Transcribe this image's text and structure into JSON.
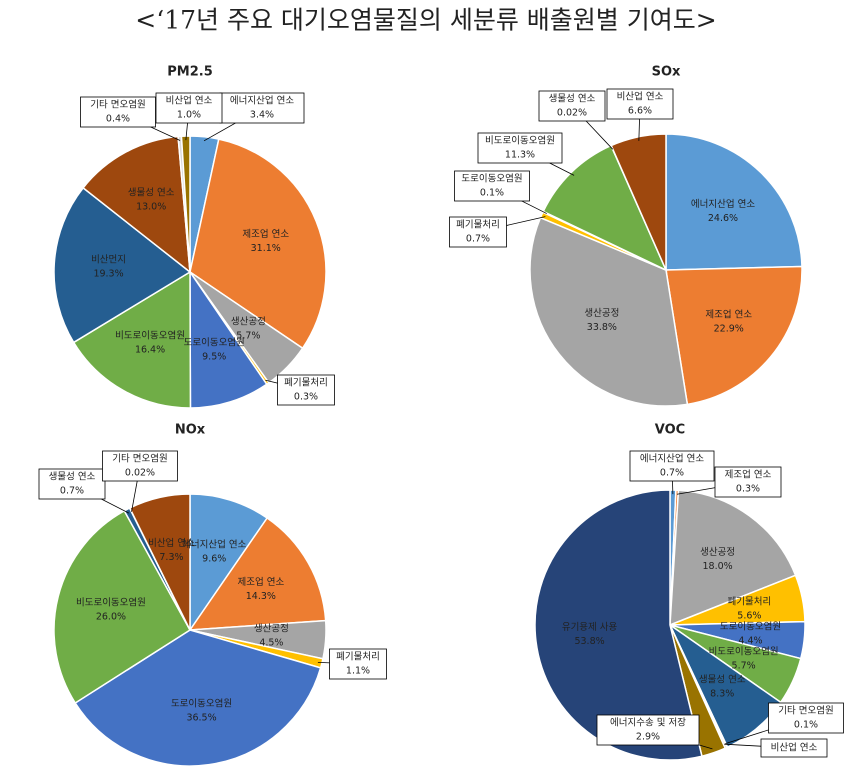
{
  "title": "<‘17년 주요 대기오염물질의 세분류 배출원별 기여도>",
  "chart_data": [
    {
      "type": "pie",
      "title": "PM2.5",
      "categories": [
        "에너지산업 연소",
        "제조업 연소",
        "생산공정",
        "폐기물처리",
        "도로이동오염원",
        "비도로이동오염원",
        "비산먼지",
        "생물성 연소",
        "기타 면오염원",
        "비산업 연소"
      ],
      "values": [
        3.4,
        31.1,
        5.7,
        0.3,
        9.5,
        16.4,
        19.3,
        13.0,
        0.4,
        1.0
      ],
      "value_labels": [
        "3.4%",
        "31.1%",
        "5.7%",
        "0.3%",
        "9.5%",
        "16.4%",
        "19.3%",
        "13.0%",
        "0.4%",
        "1.0%"
      ],
      "colors": [
        "#5b9bd5",
        "#ed7d31",
        "#a5a5a5",
        "#ffc000",
        "#4472c4",
        "#70ad47",
        "#255e91",
        "#9e480e",
        "#d9d9d9",
        "#997300"
      ]
    },
    {
      "type": "pie",
      "title": "SOx",
      "categories": [
        "에너지산업 연소",
        "제조업 연소",
        "생산공정",
        "폐기물처리",
        "도로이동오염원",
        "비도로이동오염원",
        "생물성 연소",
        "비산업 연소"
      ],
      "values": [
        24.6,
        22.9,
        33.8,
        0.7,
        0.1,
        11.3,
        0.02,
        6.6
      ],
      "value_labels": [
        "24.6%",
        "22.9%",
        "33.8%",
        "0.7%",
        "0.1%",
        "11.3%",
        "0.02%",
        "6.6%"
      ],
      "colors": [
        "#5b9bd5",
        "#ed7d31",
        "#a5a5a5",
        "#ffc000",
        "#4472c4",
        "#70ad47",
        "#255e91",
        "#9e480e"
      ]
    },
    {
      "type": "pie",
      "title": "NOx",
      "categories": [
        "에너지산업 연소",
        "제조업 연소",
        "생산공정",
        "폐기물처리",
        "도로이동오염원",
        "비도로이동오염원",
        "생물성 연소",
        "기타 면오염원",
        "비산업 연소"
      ],
      "values": [
        9.6,
        14.3,
        4.5,
        1.1,
        36.5,
        26.0,
        0.7,
        0.02,
        7.3
      ],
      "value_labels": [
        "9.6%",
        "14.3%",
        "4.5%",
        "1.1%",
        "36.5%",
        "26.0%",
        "0.7%",
        "0.02%",
        "7.3%"
      ],
      "colors": [
        "#5b9bd5",
        "#ed7d31",
        "#a5a5a5",
        "#ffc000",
        "#4472c4",
        "#70ad47",
        "#255e91",
        "#d9d9d9",
        "#9e480e"
      ]
    },
    {
      "type": "pie",
      "title": "VOC",
      "categories": [
        "에너지산업 연소",
        "제조업 연소",
        "생산공정",
        "폐기물처리",
        "도로이동오염원",
        "비도로이동오염원",
        "생물성 연소",
        "기타 면오염원",
        "비산업 연소",
        "에너지수송 및 저장",
        "유기용제 사용"
      ],
      "values": [
        0.7,
        0.3,
        18.0,
        5.6,
        4.4,
        5.7,
        8.3,
        0.1,
        0.2,
        2.9,
        53.8
      ],
      "value_labels": [
        "0.7%",
        "0.3%",
        "18.0%",
        "5.6%",
        "4.4%",
        "5.7%",
        "8.3%",
        "0.1%",
        null,
        "2.9%",
        "53.8%"
      ],
      "colors": [
        "#5b9bd5",
        "#ed7d31",
        "#a5a5a5",
        "#ffc000",
        "#4472c4",
        "#70ad47",
        "#255e91",
        "#d9d9d9",
        "#9e480e",
        "#997300",
        "#264478"
      ]
    }
  ]
}
